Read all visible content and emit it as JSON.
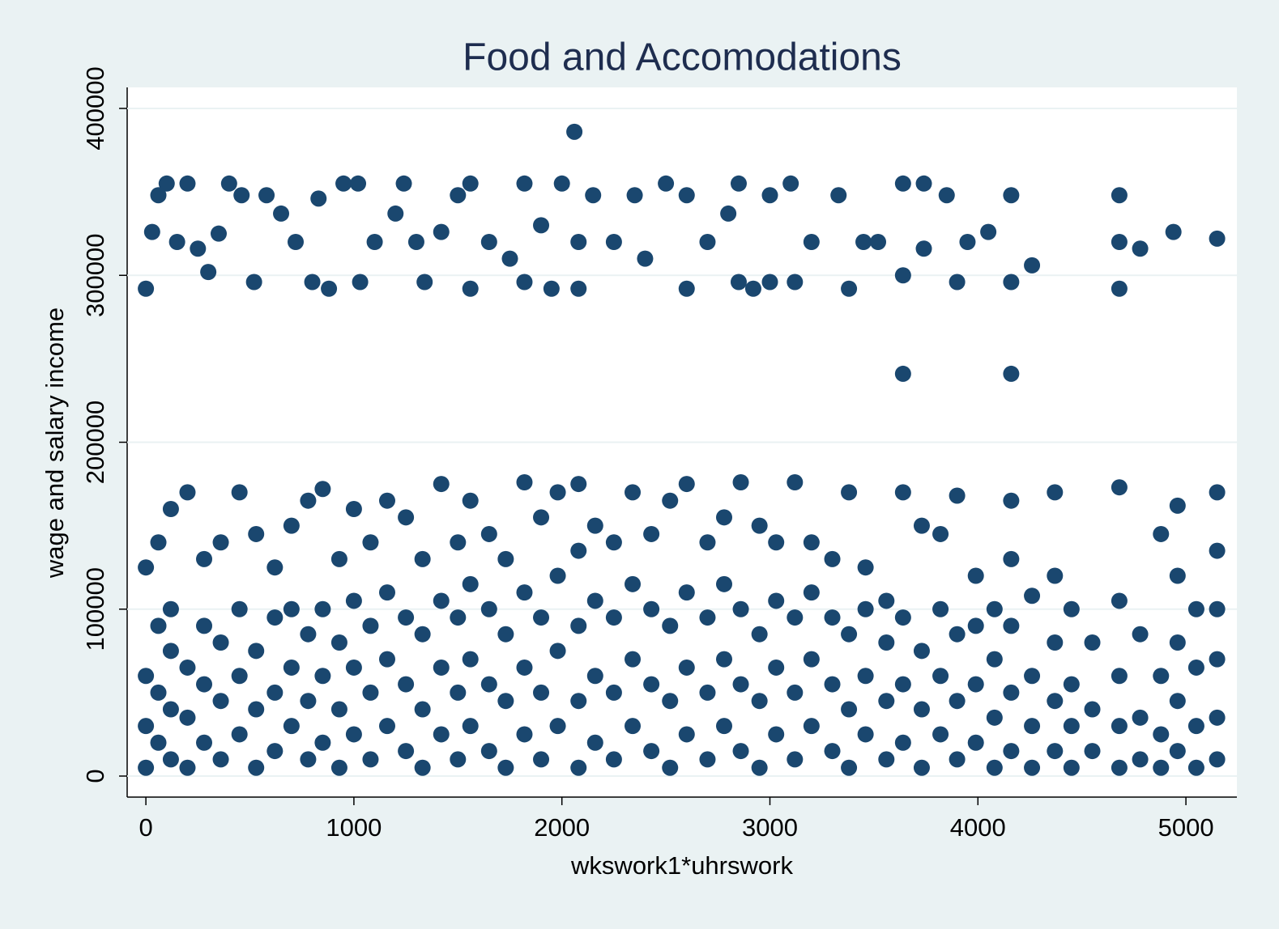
{
  "chart_data": {
    "type": "scatter",
    "title": "Food and Accomodations",
    "x_label": "wkswork1*uhrswork",
    "y_label": "wage and salary income",
    "color": "#1a476f",
    "grid": true,
    "xlim": [
      -90,
      5245
    ],
    "ylim": [
      -12600,
      412600
    ],
    "xticks": [
      0,
      1000,
      2000,
      3000,
      4000,
      5000
    ],
    "yticks": [
      0,
      100000,
      200000,
      300000,
      400000
    ],
    "x": [
      0,
      30,
      60,
      100,
      150,
      200,
      250,
      300,
      350,
      400,
      460,
      520,
      580,
      650,
      720,
      800,
      830,
      880,
      950,
      1020,
      1030,
      1100,
      1200,
      1240,
      1300,
      1340,
      1420,
      1500,
      1560,
      1560,
      1650,
      1750,
      1820,
      1820,
      1900,
      1950,
      2000,
      2060,
      2080,
      2080,
      2150,
      2250,
      2350,
      2400,
      2500,
      2600,
      2600,
      2700,
      2800,
      2850,
      2850,
      2920,
      3000,
      3000,
      3100,
      3120,
      3200,
      3330,
      3380,
      3450,
      3520,
      3640,
      3640,
      3640,
      3740,
      3740,
      3850,
      3900,
      3950,
      4050,
      4160,
      4160,
      4160,
      4260,
      4680,
      4680,
      4680,
      4780,
      4940,
      5150,
      0,
      0,
      0,
      0,
      60,
      60,
      60,
      60,
      120,
      120,
      120,
      120,
      120,
      200,
      200,
      200,
      200,
      280,
      280,
      280,
      280,
      360,
      360,
      360,
      360,
      450,
      450,
      450,
      450,
      530,
      530,
      530,
      530,
      620,
      620,
      620,
      620,
      700,
      700,
      700,
      700,
      780,
      780,
      780,
      780,
      850,
      850,
      850,
      850,
      930,
      930,
      930,
      930,
      1000,
      1000,
      1000,
      1000,
      1080,
      1080,
      1080,
      1080,
      1160,
      1160,
      1160,
      1160,
      1250,
      1250,
      1250,
      1250,
      1330,
      1330,
      1330,
      1330,
      1420,
      1420,
      1420,
      1420,
      1500,
      1500,
      1500,
      1500,
      1560,
      1560,
      1560,
      1560,
      1650,
      1650,
      1650,
      1650,
      1730,
      1730,
      1730,
      1730,
      1820,
      1820,
      1820,
      1820,
      1900,
      1900,
      1900,
      1900,
      1980,
      1980,
      1980,
      1980,
      2080,
      2080,
      2080,
      2080,
      2080,
      2160,
      2160,
      2160,
      2160,
      2250,
      2250,
      2250,
      2250,
      2340,
      2340,
      2340,
      2340,
      2430,
      2430,
      2430,
      2430,
      2520,
      2520,
      2520,
      2520,
      2600,
      2600,
      2600,
      2600,
      2700,
      2700,
      2700,
      2700,
      2780,
      2780,
      2780,
      2780,
      2860,
      2860,
      2860,
      2860,
      2950,
      2950,
      2950,
      2950,
      3030,
      3030,
      3030,
      3030,
      3120,
      3120,
      3120,
      3120,
      3200,
      3200,
      3200,
      3200,
      3300,
      3300,
      3300,
      3300,
      3380,
      3380,
      3380,
      3380,
      3460,
      3460,
      3460,
      3460,
      3560,
      3560,
      3560,
      3560,
      3640,
      3640,
      3640,
      3640,
      3730,
      3730,
      3730,
      3730,
      3820,
      3820,
      3820,
      3820,
      3900,
      3900,
      3900,
      3900,
      3990,
      3990,
      3990,
      3990,
      4080,
      4080,
      4080,
      4080,
      4160,
      4160,
      4160,
      4160,
      4160,
      4260,
      4260,
      4260,
      4260,
      4370,
      4370,
      4370,
      4370,
      4370,
      4450,
      4450,
      4450,
      4450,
      4550,
      4550,
      4550,
      4680,
      4680,
      4680,
      4680,
      4680,
      4780,
      4780,
      4780,
      4880,
      4880,
      4880,
      4880,
      4960,
      4960,
      4960,
      4960,
      4960,
      5050,
      5050,
      5050,
      5050,
      5150,
      5150,
      5150,
      5150,
      5150,
      5150
    ],
    "y": [
      292000,
      326000,
      348000,
      355000,
      320000,
      355000,
      316000,
      302000,
      325000,
      355000,
      348000,
      296000,
      348000,
      337000,
      320000,
      296000,
      346000,
      292000,
      355000,
      355000,
      296000,
      320000,
      337000,
      355000,
      320000,
      296000,
      326000,
      348000,
      355000,
      292000,
      320000,
      310000,
      355000,
      296000,
      330000,
      292000,
      355000,
      386000,
      320000,
      292000,
      348000,
      320000,
      348000,
      310000,
      355000,
      348000,
      292000,
      320000,
      337000,
      355000,
      296000,
      292000,
      348000,
      296000,
      355000,
      296000,
      320000,
      348000,
      292000,
      320000,
      320000,
      355000,
      300000,
      241000,
      355000,
      316000,
      348000,
      296000,
      320000,
      326000,
      348000,
      296000,
      241000,
      306000,
      348000,
      292000,
      320000,
      316000,
      326000,
      322000,
      5000,
      30000,
      60000,
      125000,
      20000,
      50000,
      90000,
      140000,
      10000,
      40000,
      75000,
      100000,
      160000,
      5000,
      35000,
      65000,
      170000,
      20000,
      55000,
      90000,
      130000,
      10000,
      45000,
      80000,
      140000,
      25000,
      60000,
      100000,
      170000,
      5000,
      40000,
      75000,
      145000,
      15000,
      50000,
      95000,
      125000,
      30000,
      65000,
      100000,
      150000,
      10000,
      45000,
      85000,
      165000,
      20000,
      60000,
      100000,
      172000,
      5000,
      40000,
      80000,
      130000,
      25000,
      65000,
      105000,
      160000,
      10000,
      50000,
      90000,
      140000,
      30000,
      70000,
      110000,
      165000,
      15000,
      55000,
      95000,
      155000,
      5000,
      40000,
      85000,
      130000,
      25000,
      65000,
      105000,
      175000,
      10000,
      50000,
      95000,
      140000,
      30000,
      70000,
      115000,
      165000,
      15000,
      55000,
      100000,
      145000,
      5000,
      45000,
      85000,
      130000,
      25000,
      65000,
      110000,
      176000,
      10000,
      50000,
      95000,
      155000,
      30000,
      75000,
      120000,
      170000,
      5000,
      45000,
      90000,
      135000,
      175000,
      20000,
      60000,
      105000,
      150000,
      10000,
      50000,
      95000,
      140000,
      30000,
      70000,
      115000,
      170000,
      15000,
      55000,
      100000,
      145000,
      5000,
      45000,
      90000,
      165000,
      25000,
      65000,
      110000,
      175000,
      10000,
      50000,
      95000,
      140000,
      30000,
      70000,
      115000,
      155000,
      15000,
      55000,
      100000,
      176000,
      5000,
      45000,
      85000,
      150000,
      25000,
      65000,
      105000,
      140000,
      10000,
      50000,
      95000,
      176000,
      30000,
      70000,
      110000,
      140000,
      15000,
      55000,
      95000,
      130000,
      5000,
      40000,
      85000,
      170000,
      25000,
      60000,
      100000,
      125000,
      10000,
      45000,
      80000,
      105000,
      20000,
      55000,
      95000,
      170000,
      5000,
      40000,
      75000,
      150000,
      25000,
      60000,
      100000,
      145000,
      10000,
      45000,
      85000,
      168000,
      20000,
      55000,
      90000,
      120000,
      5000,
      35000,
      70000,
      100000,
      15000,
      50000,
      90000,
      130000,
      165000,
      5000,
      30000,
      60000,
      108000,
      15000,
      45000,
      80000,
      120000,
      170000,
      5000,
      30000,
      55000,
      100000,
      15000,
      40000,
      80000,
      5000,
      30000,
      60000,
      105000,
      173000,
      10000,
      35000,
      85000,
      5000,
      25000,
      60000,
      145000,
      15000,
      45000,
      80000,
      120000,
      162000,
      5000,
      30000,
      65000,
      100000,
      10000,
      35000,
      70000,
      100000,
      135000,
      170000
    ]
  }
}
